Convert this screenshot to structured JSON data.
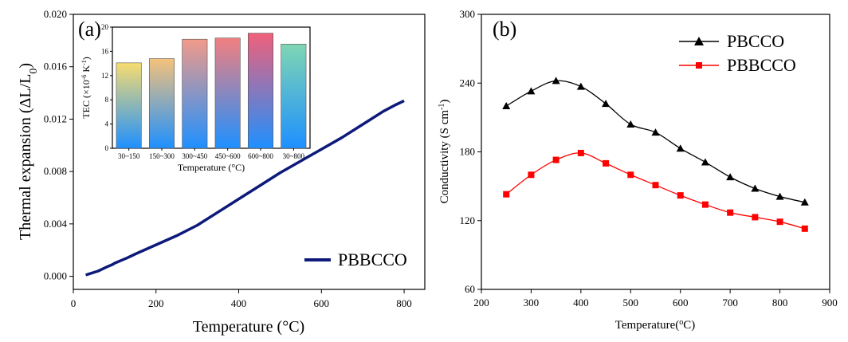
{
  "chart_data": [
    {
      "panel": "(a)",
      "type": "line",
      "xlabel": "Temperature (°C)",
      "ylabel": "Thermal expansion (ΔL/L0)",
      "xlim": [
        0,
        850
      ],
      "ylim": [
        -0.001,
        0.02
      ],
      "xticks": [
        0,
        200,
        400,
        600,
        800
      ],
      "yticks": [
        0.0,
        0.004,
        0.008,
        0.012,
        0.016,
        0.02
      ],
      "ytick_labels": [
        "0.000",
        "0.004",
        "0.008",
        "0.012",
        "0.016",
        "0.020"
      ],
      "legend_position": "bottom-right",
      "series": [
        {
          "name": "PBBCCO",
          "color": "#0d1a7a",
          "x": [
            30,
            60,
            80,
            95,
            100,
            130,
            150,
            200,
            250,
            300,
            350,
            400,
            450,
            500,
            550,
            600,
            650,
            700,
            750,
            780,
            800
          ],
          "y": [
            0.0001,
            0.0004,
            0.0007,
            0.0009,
            0.001,
            0.0014,
            0.0017,
            0.0024,
            0.0031,
            0.0039,
            0.0049,
            0.0059,
            0.0069,
            0.0079,
            0.0088,
            0.0097,
            0.0106,
            0.0116,
            0.0126,
            0.0131,
            0.0134
          ]
        }
      ],
      "inset": {
        "type": "bar",
        "ylabel": "TEC (×10",
        "ylabel_sup1": "-6",
        "ylabel_mid": " K",
        "ylabel_sup2": "-1",
        "ylabel_end": ")",
        "xlabel": "Temperature (°C)",
        "ylim": [
          0,
          20
        ],
        "yticks": [
          0,
          4,
          8,
          12,
          16,
          20
        ],
        "categories": [
          "30~150",
          "150~300",
          "300~450",
          "450~600",
          "600~800",
          "30~800"
        ],
        "values": [
          14.1,
          14.8,
          18.0,
          18.2,
          19.0,
          17.2
        ],
        "top_colors": [
          "#f7dc6f",
          "#f5c27a",
          "#f29a8a",
          "#f27f7f",
          "#f0607a",
          "#7fd6b3"
        ],
        "bottom_color": "#1e90ff"
      }
    },
    {
      "panel": "(b)",
      "type": "line",
      "xlabel": "Temperature(",
      "xlabel_sup": "o",
      "xlabel_end": "C)",
      "ylabel": "Conductivity (S cm",
      "ylabel_sup": "-1",
      "ylabel_end": ")",
      "xlim": [
        200,
        900
      ],
      "ylim": [
        60,
        300
      ],
      "xticks": [
        200,
        300,
        400,
        500,
        600,
        700,
        800,
        900
      ],
      "yticks": [
        60,
        120,
        180,
        240,
        300
      ],
      "legend_position": "top-right",
      "series": [
        {
          "name": "PBCCO",
          "color": "#000000",
          "marker": "triangle",
          "x": [
            250,
            300,
            350,
            400,
            450,
            500,
            550,
            600,
            650,
            700,
            750,
            800,
            850
          ],
          "y": [
            220,
            233,
            242,
            237,
            222,
            204,
            197,
            183,
            171,
            158,
            148,
            141,
            136
          ]
        },
        {
          "name": "PBBCCO",
          "color": "#ff0000",
          "marker": "square",
          "x": [
            250,
            300,
            350,
            400,
            450,
            500,
            550,
            600,
            650,
            700,
            750,
            800,
            850
          ],
          "y": [
            143,
            160,
            173,
            179,
            170,
            160,
            151,
            142,
            134,
            127,
            123,
            119,
            113
          ]
        }
      ]
    }
  ]
}
